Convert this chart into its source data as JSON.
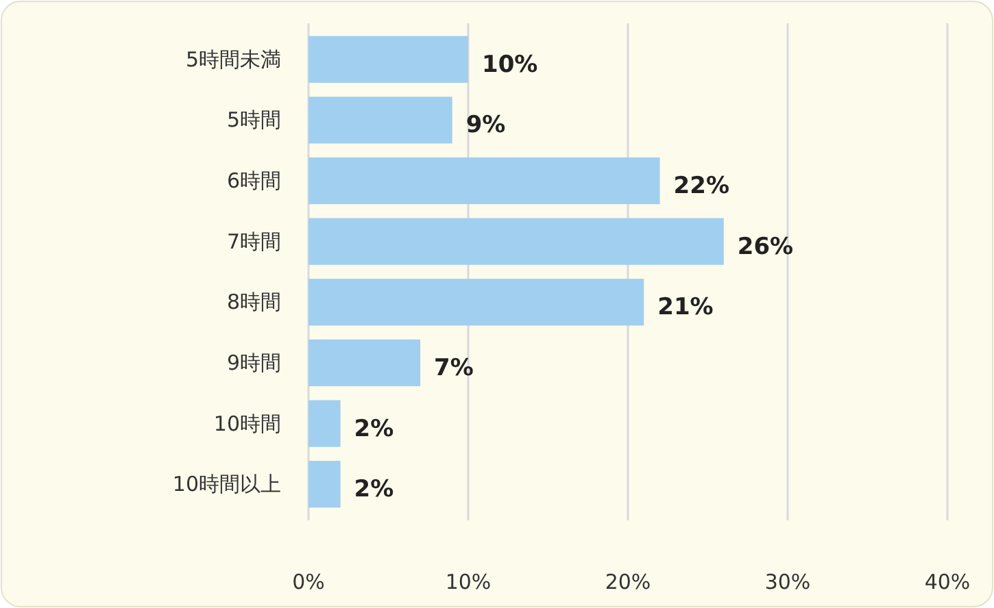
{
  "chart_data": {
    "type": "bar",
    "orientation": "horizontal",
    "categories": [
      "5時間未満",
      "5時間",
      "6時間",
      "7時間",
      "8時間",
      "9時間",
      "10時間",
      "10時間以上"
    ],
    "values": [
      10,
      9,
      22,
      26,
      21,
      7,
      2,
      2
    ],
    "color": "#a0cff0",
    "xlim": [
      0,
      40
    ],
    "xticks": [
      {
        "value": 0,
        "label": "0%"
      },
      {
        "value": 10,
        "label": "10%"
      },
      {
        "value": 20,
        "label": "20%"
      },
      {
        "value": 30,
        "label": "30%"
      },
      {
        "value": 40,
        "label": "40%"
      }
    ],
    "grid": "x",
    "value_labels": [
      "10%",
      "9%",
      "22%",
      "26%",
      "21%",
      "7%",
      "2%",
      "2%"
    ]
  }
}
